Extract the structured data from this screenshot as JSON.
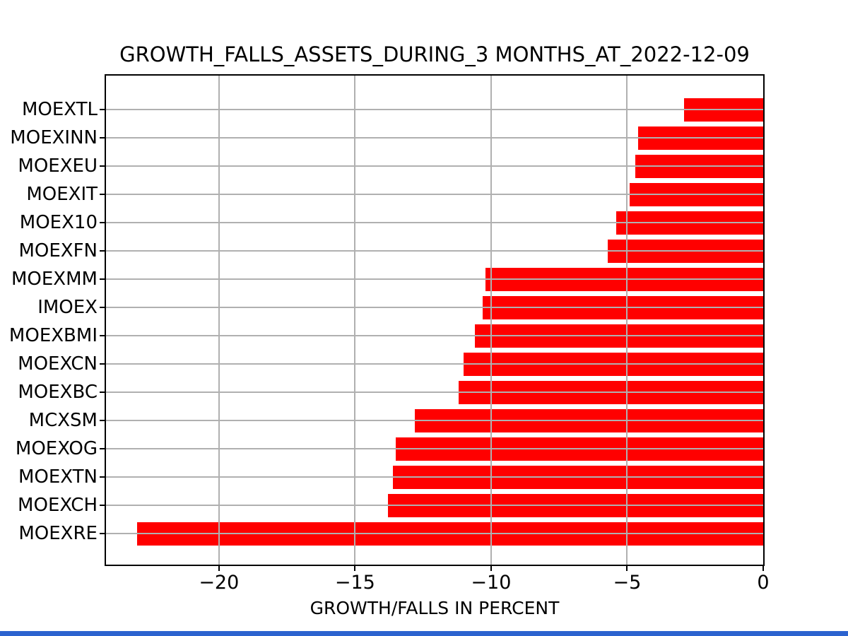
{
  "chart_data": {
    "type": "bar",
    "orientation": "horizontal",
    "title": "GROWTH_FALLS_ASSETS_DURING_3 MONTHS_AT_2022-12-09",
    "xlabel": "GROWTH/FALLS IN PERCENT",
    "ylabel": "",
    "categories": [
      "MOEXTL",
      "MOEXINN",
      "MOEXEU",
      "MOEXIT",
      "MOEX10",
      "MOEXFN",
      "MOEXMM",
      "IMOEX",
      "MOEXBMI",
      "MOEXCN",
      "MOEXBC",
      "MCXSM",
      "MOEXOG",
      "MOEXTN",
      "MOEXCH",
      "MOEXRE"
    ],
    "values": [
      -2.9,
      -4.6,
      -4.7,
      -4.9,
      -5.4,
      -5.7,
      -10.2,
      -10.3,
      -10.6,
      -11.0,
      -11.2,
      -12.8,
      -13.5,
      -13.6,
      -13.8,
      -23.0
    ],
    "xticks": [
      -20,
      -15,
      -10,
      -5,
      0
    ],
    "xlim": [
      -24.15,
      0
    ],
    "grid": true,
    "legend": false,
    "bar_color": "#ff0000",
    "grid_color": "#b0b0b0",
    "axis_color": "#000000",
    "background_color": "#ffffff"
  },
  "footer": {
    "strip_color": "#2c63cf"
  }
}
